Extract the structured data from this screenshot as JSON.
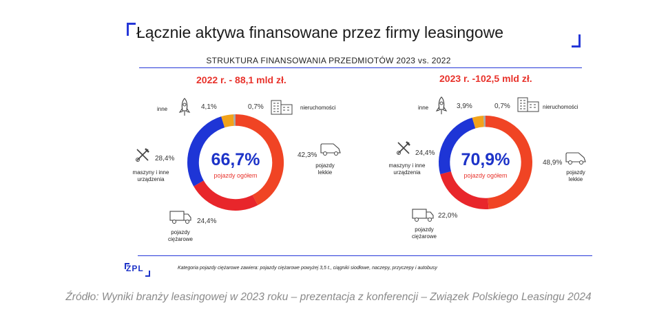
{
  "title": "Łącznie aktywa finansowane przez firmy leasingowe",
  "subtitle": "STRUKTURA FINANSOWANIA PRZEDMIOTÓW 2023 vs. 2022",
  "center_label": "pojazdy ogółem",
  "colors": {
    "pojazdy_lekkie": "#f04424",
    "pojazdy_ciezarowe": "#e8262b",
    "maszyny": "#1e35d6",
    "inne": "#f2a31b",
    "nieruchomosci": "#a8a8a8"
  },
  "labels": {
    "inne": "inne",
    "nieruchomosci": "nieruchomości",
    "maszyny_l1": "maszyny i inne",
    "maszyny_l2": "urządzenia",
    "lekkie_l1": "pojazdy",
    "lekkie_l2": "lekkie",
    "ciezarowe_l1": "pojazdy",
    "ciezarowe_l2": "ciężarowe"
  },
  "footnote": "Kategoria pojazdy ciężarowe zawiera: pojazdy ciężarowe powyżej 3,5 t., ciągniki siodłowe, naczepy, przyczepy i autobusy",
  "logo": "ZPL",
  "source": "Źródło: Wyniki branży leasingowej w 2023 roku – prezentacja z konferencji – Związek Polskiego Leasingu 2024",
  "chart_data": [
    {
      "type": "pie",
      "title": "2022 r. - 88,1 mld zł.",
      "center_value": "66,7%",
      "categories": [
        "pojazdy lekkie",
        "pojazdy ciężarowe",
        "maszyny i inne urządzenia",
        "inne",
        "nieruchomości"
      ],
      "values": [
        42.3,
        24.4,
        28.4,
        4.1,
        0.7
      ],
      "value_labels": [
        "42,3%",
        "24,4%",
        "28,4%",
        "4,1%",
        "0,7%"
      ]
    },
    {
      "type": "pie",
      "title": "2023 r. -102,5 mld zł.",
      "center_value": "70,9%",
      "categories": [
        "pojazdy lekkie",
        "pojazdy ciężarowe",
        "maszyny i inne urządzenia",
        "inne",
        "nieruchomości"
      ],
      "values": [
        48.9,
        22.0,
        24.4,
        3.9,
        0.7
      ],
      "value_labels": [
        "48,9%",
        "22,0%",
        "24,4%",
        "3,9%",
        "0,7%"
      ]
    }
  ]
}
